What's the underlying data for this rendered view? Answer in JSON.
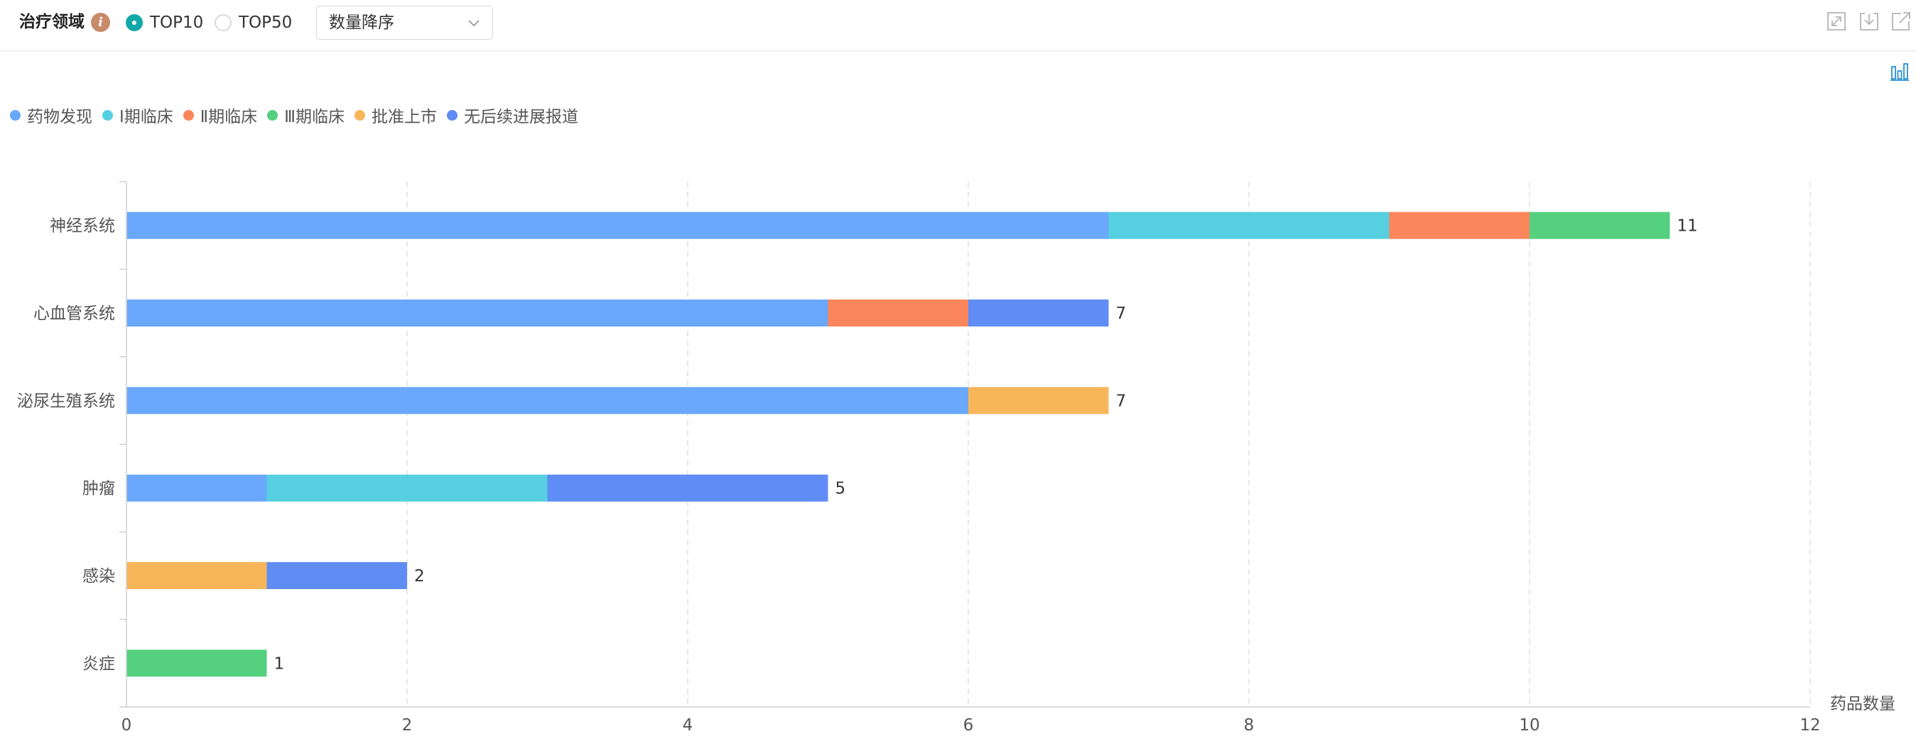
{
  "toolbar": {
    "title": "治疗领域",
    "info_icon": "info-icon",
    "radio_options": [
      {
        "label": "TOP10",
        "checked": true
      },
      {
        "label": "TOP50",
        "checked": false
      }
    ],
    "sort_select": {
      "value": "数量降序"
    },
    "accent_color": "#13a8a8",
    "right_icons": [
      "fullscreen-icon",
      "download-icon",
      "export-icon"
    ],
    "chart_type_icon": "bar-chart-icon"
  },
  "chart_data": {
    "type": "bar",
    "orientation": "horizontal",
    "stacked": true,
    "categories": [
      "神经系统",
      "心血管系统",
      "泌尿生殖系统",
      "肿瘤",
      "感染",
      "炎症"
    ],
    "series": [
      {
        "name": "药物发现",
        "color": "#6aa8fc",
        "values": [
          7,
          5,
          6,
          1,
          0,
          0
        ]
      },
      {
        "name": "Ⅰ期临床",
        "color": "#56cfe0",
        "values": [
          2,
          0,
          0,
          2,
          0,
          0
        ]
      },
      {
        "name": "Ⅱ期临床",
        "color": "#fc865b",
        "values": [
          1,
          1,
          0,
          0,
          0,
          0
        ]
      },
      {
        "name": "Ⅲ期临床",
        "color": "#54d07f",
        "values": [
          1,
          0,
          0,
          0,
          0,
          1
        ]
      },
      {
        "name": "批准上市",
        "color": "#f8b65a",
        "values": [
          0,
          0,
          1,
          0,
          1,
          0
        ]
      },
      {
        "name": "无后续进展报道",
        "color": "#608cf5",
        "values": [
          0,
          1,
          0,
          2,
          1,
          0
        ]
      }
    ],
    "totals": [
      11,
      7,
      7,
      5,
      2,
      1
    ],
    "xlabel": "药品数量",
    "ylabel": "",
    "xlim": [
      0,
      12
    ],
    "x_ticks": [
      0,
      2,
      4,
      6,
      8,
      10,
      12
    ],
    "grid": "vertical dashed",
    "legend_position": "top-left"
  }
}
